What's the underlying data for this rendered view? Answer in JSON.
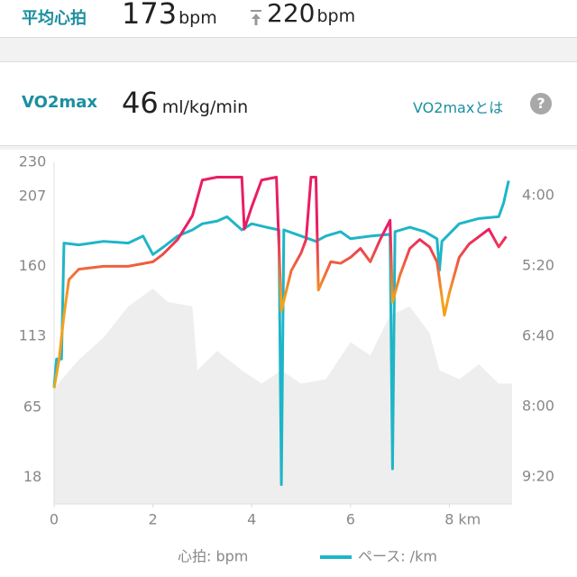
{
  "header": {
    "avg_hr": {
      "label": "平均心拍",
      "value": 173,
      "unit": "bpm"
    },
    "max_hr": {
      "value": 220,
      "unit": "bpm"
    },
    "vo2max": {
      "label": "VO2max",
      "value": 46,
      "unit": "ml/kg/min",
      "link": "VO2maxとは",
      "help": "?"
    }
  },
  "chart_data": {
    "type": "line",
    "xlim": [
      0,
      9.27
    ],
    "xticks": [
      0,
      2,
      4,
      6,
      8
    ],
    "x_unit": "km",
    "ylim": [
      0,
      230
    ],
    "yticks": [
      18,
      65,
      113,
      160,
      207,
      230
    ],
    "y2lim": [
      591,
      202
    ],
    "y2ticks": [
      {
        "value": 240,
        "label": "4:00"
      },
      {
        "value": 320,
        "label": "5:20"
      },
      {
        "value": 400,
        "label": "6:40"
      },
      {
        "value": 480,
        "label": "8:00"
      },
      {
        "value": 560,
        "label": "9:20"
      }
    ],
    "grid": false,
    "series": [
      {
        "name": "心拍: bpm",
        "colors": [
          "#e91e63",
          "#e91e63",
          "#f4a11d",
          "#f4a11d",
          "#9ccc3c",
          "#9ccc3c"
        ],
        "x": [
          0,
          0.1,
          0.2,
          0.3,
          0.5,
          1.0,
          1.5,
          2.0,
          2.2,
          2.5,
          2.8,
          3.0,
          3.3,
          3.8,
          3.85,
          4.0,
          4.2,
          4.5,
          4.6,
          4.8,
          5.0,
          5.1,
          5.2,
          5.3,
          5.35,
          5.6,
          5.8,
          6.0,
          6.2,
          6.4,
          6.6,
          6.8,
          6.85,
          7.0,
          7.2,
          7.4,
          7.6,
          7.75,
          7.9,
          8.0,
          8.2,
          8.4,
          8.6,
          8.8,
          9.0,
          9.15
        ],
        "values": [
          78,
          97,
          127,
          151,
          158,
          160,
          160,
          163,
          168,
          178,
          194,
          218,
          220,
          220,
          185,
          200,
          218,
          220,
          130,
          157,
          169,
          178,
          220,
          220,
          144,
          163,
          162,
          166,
          172,
          163,
          178,
          191,
          136,
          154,
          172,
          178,
          173,
          163,
          127,
          142,
          166,
          175,
          180,
          185,
          173,
          180
        ]
      },
      {
        "name": "ペース: /km",
        "color": "#1fb5c8",
        "axis": "y2",
        "x": [
          0,
          0.05,
          0.15,
          0.2,
          0.5,
          1.0,
          1.5,
          1.8,
          2.0,
          2.2,
          2.5,
          2.8,
          3.0,
          3.3,
          3.5,
          3.8,
          4.0,
          4.3,
          4.55,
          4.6,
          4.65,
          5.0,
          5.3,
          5.5,
          5.8,
          6.0,
          6.4,
          6.8,
          6.85,
          6.9,
          7.2,
          7.5,
          7.75,
          7.8,
          7.85,
          8.2,
          8.6,
          9.0,
          9.1,
          9.2
        ],
        "values": [
          458,
          426,
          426,
          294,
          296,
          292,
          294,
          286,
          307,
          299,
          286,
          279,
          272,
          269,
          264,
          279,
          272,
          276,
          279,
          569,
          279,
          286,
          292,
          286,
          281,
          289,
          286,
          284,
          551,
          281,
          276,
          281,
          289,
          325,
          292,
          272,
          266,
          264,
          248,
          223
        ]
      }
    ],
    "area": {
      "color": "#eeeeee",
      "x": [
        0,
        0.5,
        1.0,
        1.5,
        2.0,
        2.3,
        2.8,
        2.9,
        3.3,
        3.8,
        4.2,
        4.6,
        5.0,
        5.5,
        6.0,
        6.4,
        6.8,
        7.2,
        7.6,
        7.8,
        8.2,
        8.6,
        9.0,
        9.27
      ],
      "values": [
        78,
        97,
        112,
        133,
        145,
        136,
        133,
        90,
        103,
        90,
        81,
        90,
        81,
        84,
        109,
        100,
        127,
        133,
        115,
        90,
        84,
        94,
        81,
        81
      ]
    }
  }
}
